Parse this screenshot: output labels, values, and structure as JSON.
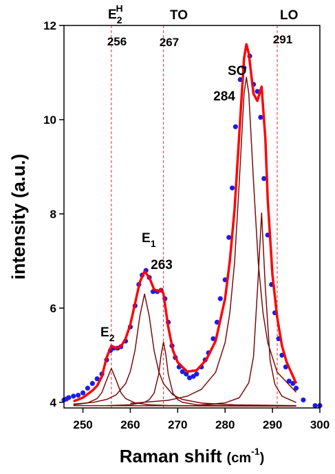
{
  "chart_data": {
    "type": "line",
    "xlabel": "Raman shift",
    "xlabel_unit": [
      "(cm",
      "-1",
      ")"
    ],
    "ylabel": "intensity (a.u.)",
    "xlim": [
      246,
      300
    ],
    "ylim": [
      3.88,
      12
    ],
    "xticks": [
      250,
      260,
      270,
      280,
      290,
      300
    ],
    "yticks": [
      4,
      6,
      8,
      10,
      12
    ],
    "vlines": {
      "values": [
        256,
        267,
        291
      ],
      "color": "#ff2020"
    },
    "peak_labels": [
      {
        "symbol": "E",
        "sub": "2",
        "sup": "H",
        "position": 256
      },
      {
        "symbol": "TO",
        "position": 267
      },
      {
        "symbol": "LO",
        "position": 291
      },
      {
        "symbol": "SO",
        "position": 284
      },
      {
        "symbol": "E",
        "sub": "1",
        "position": 263
      },
      {
        "symbol": "E",
        "sub": "2"
      }
    ],
    "series": [
      {
        "style": "line",
        "color": "#7a0a0a",
        "width": 1.5,
        "x": [
          248,
          295
        ],
        "values": [
          3.93,
          3.92
        ]
      },
      {
        "style": "line",
        "color": "#7a0a0a",
        "width": 1.5,
        "x": [
          248,
          251,
          253,
          254,
          255,
          256,
          257,
          258,
          259,
          261,
          264,
          268,
          275,
          285,
          295
        ],
        "values": [
          3.947,
          3.986,
          4.08,
          4.208,
          4.474,
          4.72,
          4.474,
          4.208,
          4.08,
          3.986,
          3.947,
          3.932,
          3.925,
          3.92,
          3.92
        ]
      },
      {
        "style": "line",
        "color": "#7a0a0a",
        "width": 1.5,
        "x": [
          248,
          252,
          255,
          257,
          259,
          260,
          261,
          262,
          263,
          264,
          265,
          266,
          267,
          269,
          271,
          275,
          282,
          295
        ],
        "values": [
          3.962,
          3.996,
          4.06,
          4.158,
          4.396,
          4.652,
          5.11,
          5.824,
          6.3,
          5.824,
          5.11,
          4.652,
          4.396,
          4.158,
          4.06,
          3.984,
          3.946,
          3.929
        ]
      },
      {
        "style": "line",
        "color": "#7a0a0a",
        "width": 1.5,
        "x": [
          255,
          260,
          263,
          264,
          265,
          266,
          266.5,
          267,
          267.5,
          268,
          269,
          270,
          271,
          274,
          280,
          295
        ],
        "values": [
          3.929,
          3.947,
          4.0,
          4.056,
          4.192,
          4.6,
          5.008,
          5.28,
          5.008,
          4.6,
          4.192,
          4.056,
          4.0,
          3.947,
          3.928,
          3.92
        ]
      },
      {
        "style": "line",
        "color": "#7a0a0a",
        "width": 1.5,
        "x": [
          260,
          268,
          272,
          275,
          278,
          280,
          281,
          282,
          283,
          284,
          284.5,
          285,
          286,
          287,
          288,
          289,
          291,
          295
        ],
        "values": [
          3.976,
          4.042,
          4.13,
          4.275,
          4.637,
          5.267,
          5.897,
          6.968,
          8.685,
          10.557,
          10.9,
          10.557,
          8.685,
          6.968,
          5.897,
          5.267,
          4.637,
          4.213
        ]
      },
      {
        "style": "line",
        "color": "#7a0a0a",
        "width": 1.5,
        "x": [
          275,
          280,
          283,
          285,
          286,
          287,
          287.7,
          288.5,
          289.5,
          290.5,
          292,
          295
        ],
        "values": [
          3.945,
          3.988,
          4.097,
          4.415,
          4.974,
          6.672,
          8.02,
          6.42,
          4.887,
          4.384,
          4.13,
          3.996
        ]
      },
      {
        "style": "markers",
        "color": "#1c1ce6",
        "x": [
          246,
          246.5,
          247,
          248,
          249,
          250,
          251,
          252,
          253,
          254,
          255,
          255.8,
          256.5,
          257.3,
          258,
          259,
          260,
          261,
          261.8,
          262.5,
          263.3,
          264,
          264.8,
          265.7,
          266.5,
          267.3,
          268,
          268.8,
          269.5,
          270.3,
          271,
          271.8,
          272.5,
          273.3,
          274,
          275,
          275.8,
          276.5,
          277.5,
          278.3,
          279,
          280,
          280.8,
          281.5,
          282.2,
          283.2,
          284,
          285.2,
          286,
          286.8,
          287.5,
          288.2,
          289,
          289.8,
          290.5,
          291.3,
          292,
          292.8,
          293.5,
          294.3,
          295,
          296.5,
          299,
          300
        ],
        "values": [
          4.05,
          4.07,
          4.1,
          4.13,
          4.15,
          4.2,
          4.3,
          4.4,
          4.5,
          4.6,
          4.9,
          5.1,
          5.15,
          5.15,
          5.18,
          5.3,
          5.6,
          6.05,
          6.5,
          6.7,
          6.8,
          6.65,
          6.35,
          6.35,
          6.38,
          6.2,
          5.7,
          5.2,
          4.95,
          4.75,
          4.65,
          4.6,
          4.52,
          4.55,
          4.6,
          4.75,
          4.9,
          5.05,
          5.35,
          5.7,
          6.2,
          6.6,
          7.5,
          8.55,
          9.85,
          10.85,
          11.1,
          11.35,
          10.75,
          10.6,
          10.05,
          8.75,
          7.55,
          6.5,
          5.9,
          5.35,
          5.0,
          4.75,
          4.45,
          4.4,
          4.3,
          4.05,
          3.93,
          3.93
        ]
      },
      {
        "style": "line",
        "color": "#ff0000",
        "width": 3.5,
        "x": [
          248,
          250,
          252,
          253,
          254,
          255,
          256,
          257,
          258,
          259,
          260,
          261,
          262,
          263,
          264,
          265,
          266,
          266.5,
          267,
          268,
          269,
          270,
          272,
          274,
          276,
          278,
          280,
          281,
          282,
          283,
          284,
          284.5,
          285,
          286,
          286.8,
          287.7,
          288.5,
          289,
          290,
          291,
          292,
          293,
          295
        ],
        "values": [
          4.02,
          4.1,
          4.25,
          4.35,
          4.55,
          4.95,
          5.2,
          5.15,
          5.18,
          5.35,
          5.65,
          6.1,
          6.55,
          6.78,
          6.65,
          6.4,
          6.35,
          6.4,
          6.3,
          5.6,
          5.1,
          4.85,
          4.65,
          4.68,
          4.9,
          5.3,
          6.2,
          7.0,
          8.1,
          9.7,
          11.3,
          11.6,
          11.4,
          10.55,
          10.4,
          10.7,
          9.6,
          8.3,
          6.7,
          5.8,
          5.2,
          4.85,
          4.4
        ]
      }
    ]
  }
}
